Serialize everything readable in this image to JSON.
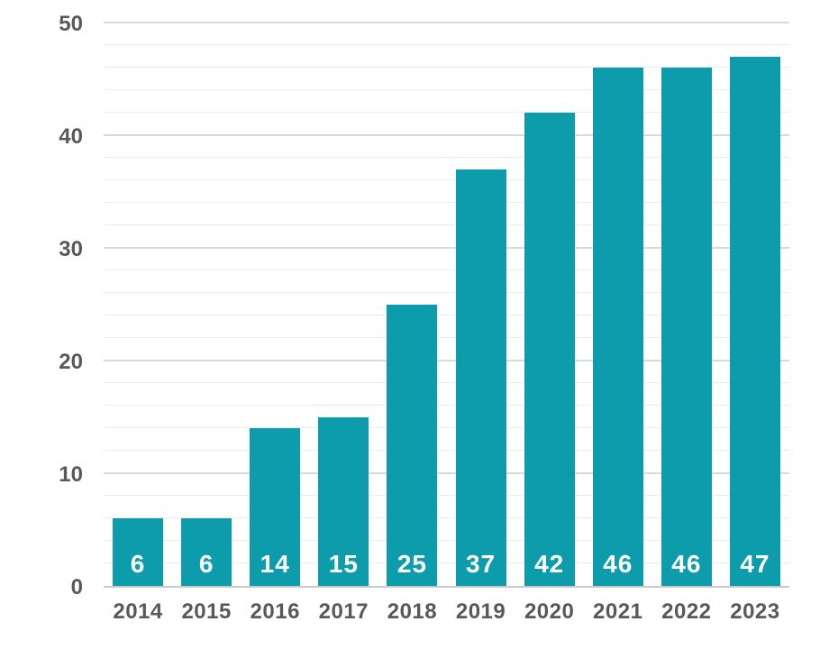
{
  "chart_data": {
    "type": "bar",
    "categories": [
      "2014",
      "2015",
      "2016",
      "2017",
      "2018",
      "2019",
      "2020",
      "2021",
      "2022",
      "2023"
    ],
    "values": [
      6,
      6,
      14,
      15,
      25,
      37,
      42,
      46,
      46,
      47
    ],
    "value_labels": [
      "6",
      "6",
      "14",
      "15",
      "25",
      "37",
      "42",
      "46",
      "46",
      "47"
    ],
    "title": "",
    "xlabel": "",
    "ylabel": "",
    "ylim": [
      0,
      50
    ],
    "y_major_ticks": [
      0,
      10,
      20,
      30,
      40,
      50
    ],
    "y_minor_step": 2,
    "grid": "on",
    "legend": "none",
    "colors": {
      "bar": "#0d9cab",
      "value_label": "#ffffff",
      "axis_text": "#595959",
      "minor_grid": "#ececec",
      "major_grid": "#d9d9d9",
      "baseline": "#c9c9c9",
      "background": "#ffffff"
    }
  }
}
